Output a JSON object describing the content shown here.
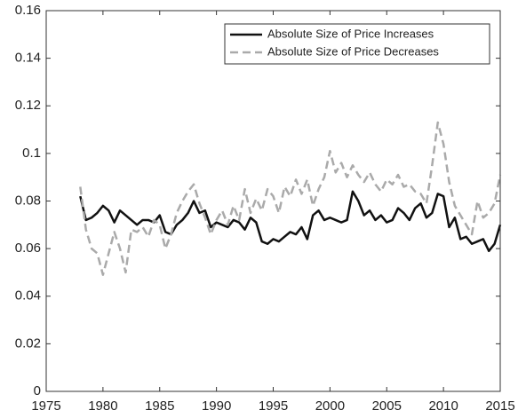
{
  "chart_data": {
    "type": "line",
    "x": [
      1978,
      1978.5,
      1979,
      1979.5,
      1980,
      1980.5,
      1981,
      1981.5,
      1982,
      1982.5,
      1983,
      1983.5,
      1984,
      1984.5,
      1985,
      1985.5,
      1986,
      1986.5,
      1987,
      1987.5,
      1988,
      1988.5,
      1989,
      1989.5,
      1990,
      1990.5,
      1991,
      1991.5,
      1992,
      1992.5,
      1993,
      1993.5,
      1994,
      1994.5,
      1995,
      1995.5,
      1996,
      1996.5,
      1997,
      1997.5,
      1998,
      1998.5,
      1999,
      1999.5,
      2000,
      2000.5,
      2001,
      2001.5,
      2002,
      2002.5,
      2003,
      2003.5,
      2004,
      2004.5,
      2005,
      2005.5,
      2006,
      2006.5,
      2007,
      2007.5,
      2008,
      2008.5,
      2009,
      2009.5,
      2010,
      2010.5,
      2011,
      2011.5,
      2012,
      2012.5,
      2013,
      2013.5,
      2014,
      2014.5,
      2015
    ],
    "series": [
      {
        "name": "Absolute Size of Price Increases",
        "color": "#111111",
        "line_style": "solid",
        "values": [
          0.082,
          0.072,
          0.073,
          0.075,
          0.078,
          0.076,
          0.071,
          0.076,
          0.074,
          0.072,
          0.07,
          0.072,
          0.072,
          0.071,
          0.074,
          0.067,
          0.066,
          0.07,
          0.072,
          0.075,
          0.08,
          0.075,
          0.076,
          0.069,
          0.071,
          0.07,
          0.069,
          0.072,
          0.071,
          0.068,
          0.073,
          0.071,
          0.063,
          0.062,
          0.064,
          0.063,
          0.065,
          0.067,
          0.066,
          0.069,
          0.064,
          0.074,
          0.076,
          0.072,
          0.073,
          0.072,
          0.071,
          0.072,
          0.084,
          0.08,
          0.074,
          0.076,
          0.072,
          0.074,
          0.071,
          0.072,
          0.077,
          0.075,
          0.072,
          0.077,
          0.079,
          0.073,
          0.075,
          0.083,
          0.082,
          0.069,
          0.073,
          0.064,
          0.065,
          0.062,
          0.063,
          0.064,
          0.059,
          0.062,
          0.07
        ]
      },
      {
        "name": "Absolute Size of Price Decreases",
        "color": "#aaaaaa",
        "line_style": "dashed",
        "values": [
          0.086,
          0.068,
          0.06,
          0.058,
          0.049,
          0.058,
          0.067,
          0.06,
          0.05,
          0.068,
          0.067,
          0.069,
          0.065,
          0.072,
          0.07,
          0.06,
          0.066,
          0.075,
          0.08,
          0.084,
          0.087,
          0.079,
          0.073,
          0.066,
          0.072,
          0.076,
          0.07,
          0.078,
          0.072,
          0.085,
          0.075,
          0.081,
          0.076,
          0.085,
          0.082,
          0.075,
          0.086,
          0.082,
          0.089,
          0.083,
          0.089,
          0.078,
          0.085,
          0.09,
          0.101,
          0.092,
          0.096,
          0.09,
          0.095,
          0.091,
          0.088,
          0.092,
          0.087,
          0.084,
          0.089,
          0.087,
          0.091,
          0.086,
          0.087,
          0.084,
          0.083,
          0.079,
          0.095,
          0.113,
          0.104,
          0.088,
          0.078,
          0.074,
          0.07,
          0.066,
          0.08,
          0.073,
          0.075,
          0.079,
          0.091
        ]
      }
    ],
    "xlim": [
      1975,
      2015
    ],
    "xticks": [
      1975,
      1980,
      1985,
      1990,
      1995,
      2000,
      2005,
      2010,
      2015
    ],
    "ylim": [
      0,
      0.16
    ],
    "yticks": [
      0,
      0.02,
      0.04,
      0.06,
      0.08,
      0.1,
      0.12,
      0.14,
      0.16
    ],
    "grid": false,
    "legend": "northeast"
  }
}
